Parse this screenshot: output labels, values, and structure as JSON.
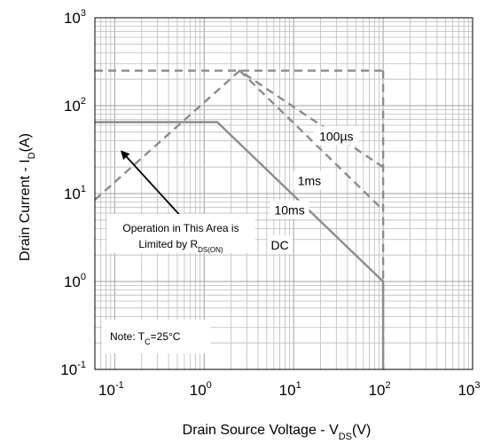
{
  "chart_data": {
    "type": "line",
    "title": "",
    "xlabel": {
      "main": "Drain Source Voltage - V",
      "sub": "DS",
      "unit": "(V)"
    },
    "ylabel": {
      "main": "Drain Current - I",
      "sub": "D",
      "unit": "(A)"
    },
    "xscale": "log",
    "yscale": "log",
    "xlim": [
      0.06,
      1000
    ],
    "ylim": [
      0.1,
      1000
    ],
    "x_ticks": [
      {
        "value": 0.1,
        "base": "10",
        "exp": "-1"
      },
      {
        "value": 1,
        "base": "10",
        "exp": "0"
      },
      {
        "value": 10,
        "base": "10",
        "exp": "1"
      },
      {
        "value": 100,
        "base": "10",
        "exp": "2"
      },
      {
        "value": 1000,
        "base": "10",
        "exp": "3"
      }
    ],
    "y_ticks": [
      {
        "value": 0.1,
        "base": "10",
        "exp": "-1"
      },
      {
        "value": 1,
        "base": "10",
        "exp": "0"
      },
      {
        "value": 10,
        "base": "10",
        "exp": "1"
      },
      {
        "value": 100,
        "base": "10",
        "exp": "2"
      },
      {
        "value": 1000,
        "base": "10",
        "exp": "3"
      }
    ],
    "grid": true,
    "series": [
      {
        "name": "100µs",
        "style": "dashed",
        "color": "#8c8c8c",
        "x": [
          0.06,
          2.5,
          100
        ],
        "y": [
          8.5,
          250,
          20
        ]
      },
      {
        "name": "1ms",
        "style": "dashed",
        "color": "#8c8c8c",
        "x": [
          2.5,
          100
        ],
        "y": [
          250,
          6.5
        ]
      },
      {
        "name": "10ms",
        "style": "dashed",
        "color": "#8c8c8c",
        "x": [
          100,
          100
        ],
        "y": [
          250,
          0.1
        ]
      },
      {
        "name": "DC",
        "style": "solid",
        "color": "#8c8c8c",
        "x": [
          0.06,
          1.4,
          100,
          100
        ],
        "y": [
          65,
          65,
          1,
          0.1
        ]
      },
      {
        "name": "",
        "style": "dashed",
        "color": "#8c8c8c",
        "x": [
          0.06,
          100
        ],
        "y": [
          250,
          250
        ]
      }
    ],
    "curve_labels": [
      {
        "text": "100µs",
        "x": 30,
        "y": 45
      },
      {
        "text": "1ms",
        "x": 15,
        "y": 14
      },
      {
        "text": "10ms",
        "x": 9,
        "y": 6.5
      },
      {
        "text": "DC",
        "x": 7,
        "y": 2.6
      }
    ],
    "annotations": {
      "region_line1": "Operation in This Area is",
      "region_line2_main": "Limited by R",
      "region_line2_sub": "DS(ON)",
      "arrow_from": {
        "x": 0.55,
        "y": 5.5
      },
      "arrow_to": {
        "x": 0.12,
        "y": 30
      },
      "note_main": "Note: T",
      "note_sub": "C",
      "note_rest": "=25°C"
    },
    "colors": {
      "curve": "#8c8c8c",
      "grid": "#bdbdbd",
      "grid_major": "#a0a0a0",
      "frame": "#000000"
    }
  }
}
